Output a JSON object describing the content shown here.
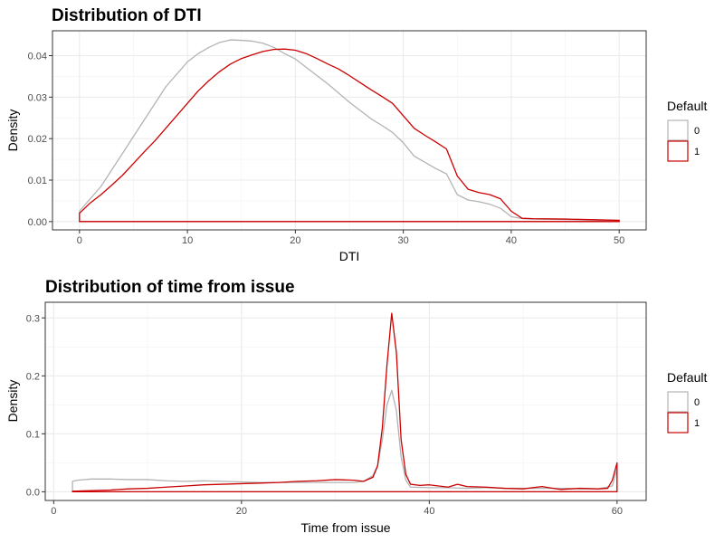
{
  "chart_data": [
    {
      "type": "area",
      "title": "Distribution of DTI",
      "xlabel": "DTI",
      "ylabel": "Density",
      "xlim": [
        -2.5,
        52.5
      ],
      "ylim": [
        -0.002,
        0.046
      ],
      "x_ticks": [
        0,
        10,
        20,
        30,
        40,
        50
      ],
      "x_tick_labels": [
        "0",
        "10",
        "20",
        "30",
        "40",
        "50"
      ],
      "y_ticks": [
        0,
        0.01,
        0.02,
        0.03,
        0.04
      ],
      "y_tick_labels": [
        "0.00",
        "0.01",
        "0.02",
        "0.03",
        "0.04"
      ],
      "grid": true,
      "legend_position": "right",
      "legend": {
        "title": "Default",
        "entries": [
          "0",
          "1"
        ]
      },
      "series": [
        {
          "name": "0",
          "color": "#b3b3b3",
          "x": [
            0,
            1,
            2,
            3,
            4,
            5,
            6,
            7,
            8,
            9,
            10,
            11,
            12,
            13,
            14,
            15,
            16,
            17,
            18,
            19,
            20,
            21,
            22,
            23,
            24,
            25,
            26,
            27,
            28,
            29,
            30,
            31,
            32,
            33,
            34,
            35,
            36,
            37,
            38,
            39,
            40,
            41,
            42,
            45,
            50
          ],
          "y": [
            0.0025,
            0.0055,
            0.0085,
            0.0125,
            0.0165,
            0.0205,
            0.0245,
            0.0285,
            0.0325,
            0.0355,
            0.0385,
            0.0405,
            0.042,
            0.0432,
            0.0438,
            0.0437,
            0.0435,
            0.043,
            0.042,
            0.0405,
            0.0392,
            0.0372,
            0.0352,
            0.0332,
            0.031,
            0.0288,
            0.0268,
            0.0248,
            0.0232,
            0.0215,
            0.019,
            0.0158,
            0.0143,
            0.0128,
            0.0115,
            0.0065,
            0.0052,
            0.0048,
            0.0042,
            0.0032,
            0.0012,
            0.0007,
            0.0006,
            0.0005,
            0.0002
          ]
        },
        {
          "name": "1",
          "color": "#cc0000",
          "x": [
            0,
            1,
            2,
            3,
            4,
            5,
            6,
            7,
            8,
            9,
            10,
            11,
            12,
            13,
            14,
            15,
            16,
            17,
            18,
            19,
            20,
            21,
            22,
            23,
            24,
            25,
            26,
            27,
            28,
            29,
            30,
            31,
            32,
            33,
            34,
            35,
            36,
            37,
            38,
            39,
            40,
            41,
            42,
            45,
            50
          ],
          "y": [
            0.002,
            0.0045,
            0.0065,
            0.0088,
            0.0112,
            0.014,
            0.0168,
            0.0195,
            0.0225,
            0.0255,
            0.0285,
            0.0315,
            0.034,
            0.0362,
            0.038,
            0.0393,
            0.0402,
            0.041,
            0.0415,
            0.0416,
            0.0413,
            0.0405,
            0.0393,
            0.038,
            0.0368,
            0.0352,
            0.0335,
            0.0318,
            0.0302,
            0.0285,
            0.0255,
            0.0225,
            0.0208,
            0.0192,
            0.0175,
            0.011,
            0.0078,
            0.007,
            0.0065,
            0.0055,
            0.0025,
            0.0008,
            0.0007,
            0.0006,
            0.0003
          ]
        }
      ]
    },
    {
      "type": "area",
      "title": "Distribution of time from issue",
      "xlabel": "Time from issue",
      "ylabel": "Density",
      "xlim": [
        -0.9,
        63.1
      ],
      "ylim": [
        -0.015,
        0.327
      ],
      "x_ticks": [
        0,
        20,
        40,
        60
      ],
      "x_tick_labels": [
        "0",
        "20",
        "40",
        "60"
      ],
      "y_ticks": [
        0,
        0.1,
        0.2,
        0.3
      ],
      "y_tick_labels": [
        "0.0",
        "0.1",
        "0.2",
        "0.3"
      ],
      "grid": true,
      "legend_position": "right",
      "legend": {
        "title": "Default",
        "entries": [
          "0",
          "1"
        ]
      },
      "series": [
        {
          "name": "0",
          "color": "#b3b3b3",
          "x": [
            2,
            2.5,
            4,
            6,
            8,
            10,
            12,
            14,
            16,
            18,
            20,
            22,
            24,
            26,
            28,
            30,
            32,
            33,
            34,
            34.5,
            35,
            35.5,
            36,
            36.5,
            37,
            37.5,
            38,
            40,
            42,
            44,
            46,
            48,
            50,
            52,
            54,
            56,
            58,
            59.5,
            60
          ],
          "y": [
            0.018,
            0.02,
            0.022,
            0.022,
            0.021,
            0.021,
            0.019,
            0.018,
            0.019,
            0.018,
            0.017,
            0.016,
            0.016,
            0.016,
            0.016,
            0.016,
            0.016,
            0.018,
            0.028,
            0.045,
            0.09,
            0.15,
            0.175,
            0.14,
            0.06,
            0.02,
            0.008,
            0.007,
            0.007,
            0.006,
            0.007,
            0.006,
            0.006,
            0.006,
            0.006,
            0.005,
            0.005,
            0.01,
            0.04
          ]
        },
        {
          "name": "1",
          "color": "#cc0000",
          "x": [
            2,
            4,
            6,
            8,
            10,
            12,
            14,
            16,
            18,
            20,
            22,
            24,
            26,
            28,
            30,
            32,
            33,
            34,
            34.5,
            35,
            35.5,
            36,
            36.5,
            37,
            37.5,
            38,
            39,
            40,
            42,
            43,
            44,
            46,
            48,
            50,
            52,
            54,
            56,
            58,
            59,
            59.5,
            60
          ],
          "y": [
            0.001,
            0.002,
            0.003,
            0.005,
            0.006,
            0.008,
            0.01,
            0.012,
            0.013,
            0.014,
            0.015,
            0.016,
            0.018,
            0.019,
            0.021,
            0.02,
            0.018,
            0.025,
            0.045,
            0.11,
            0.22,
            0.308,
            0.24,
            0.09,
            0.03,
            0.013,
            0.011,
            0.012,
            0.008,
            0.013,
            0.009,
            0.008,
            0.006,
            0.005,
            0.009,
            0.004,
            0.006,
            0.005,
            0.006,
            0.02,
            0.05
          ]
        }
      ]
    }
  ]
}
